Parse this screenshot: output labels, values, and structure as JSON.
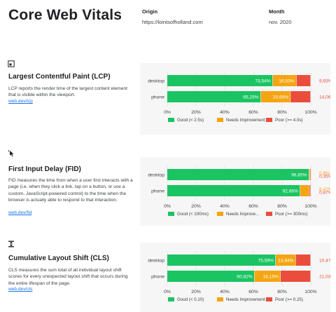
{
  "header": {
    "title": "Core Web Vitals",
    "origin_label": "Origin",
    "origin_value": "https://lointsofholland.com",
    "month_label": "Month",
    "month_value": "nov. 2020"
  },
  "colors": {
    "good": "#1bc462",
    "needs": "#f5a512",
    "poor": "#ea4d3c",
    "card": "#f6f6f6"
  },
  "sections": [
    {
      "icon": "lcp-icon",
      "title": "Largest Contentful Paint (LCP)",
      "description": "LCP reports the render time of the largest content element that is visible within the viewport.",
      "link": "web.dev/lcp"
    },
    {
      "icon": "fid-icon",
      "title": "First Input Delay (FID)",
      "description": "FID measures the time from when a user first interacts with a page (i.e. when they click a link, tap on a button, or use a custom, JavaScript-powered control) to the time when the browser is actually able to respond to that interaction.",
      "link": "web.dev/fid"
    },
    {
      "icon": "cls-icon",
      "title": "Cumulative Layout Shift (CLS)",
      "description": "CLS measures the sum total of all individual layout shift scores for every unexpected layout shift that occurs during the entire lifespan of the page.",
      "link": "web.dev/cls"
    }
  ],
  "chart_data": [
    {
      "type": "bar",
      "stacked": true,
      "orientation": "horizontal",
      "categories": [
        "desktop",
        "phone"
      ],
      "xlim": [
        0,
        100
      ],
      "x_ticks": [
        "0%",
        "20%",
        "40%",
        "60%",
        "80%",
        "100%"
      ],
      "series": [
        {
          "name": "Good (< 2.5s)",
          "values": [
            73.54,
            65.25
          ],
          "labels": [
            "73,54%",
            "65,25%"
          ]
        },
        {
          "name": "Needs Improvement",
          "values": [
            16.53,
            20.69
          ],
          "labels": [
            "16,53%",
            "20,69%"
          ]
        },
        {
          "name": "Poor (>= 4.0s)",
          "values": [
            9.93,
            14.06
          ],
          "labels": [
            "9,93%",
            "14,06%"
          ]
        }
      ],
      "legend_position": "bottom"
    },
    {
      "type": "bar",
      "stacked": true,
      "orientation": "horizontal",
      "categories": [
        "desktop",
        "phone"
      ],
      "xlim": [
        0,
        100
      ],
      "x_ticks": [
        "0%",
        "20%",
        "40%",
        "60%",
        "80%",
        "100%"
      ],
      "series": [
        {
          "name": "Good (< 100ms)",
          "values": [
            98.85,
            92.66
          ],
          "labels": [
            "98,85%",
            "92,66%"
          ]
        },
        {
          "name": "Needs Improve...",
          "values": [
            0.8,
            6.47
          ],
          "labels": [
            "0,8%",
            "6,47%"
          ]
        },
        {
          "name": "Poor (>= 300ms)",
          "values": [
            0.35,
            0.87
          ],
          "labels": [
            "0,35%",
            "0,87%"
          ]
        }
      ],
      "legend_position": "bottom"
    },
    {
      "type": "bar",
      "stacked": true,
      "orientation": "horizontal",
      "categories": [
        "desktop",
        "phone"
      ],
      "xlim": [
        0,
        100
      ],
      "x_ticks": [
        "0%",
        "20%",
        "40%",
        "60%",
        "80%",
        "100%"
      ],
      "series": [
        {
          "name": "Good (< 0.10)",
          "values": [
            75.59,
            60.82
          ],
          "labels": [
            "75,59%",
            "60,82%"
          ]
        },
        {
          "name": "Needs Improvement",
          "values": [
            13.94,
            18.15
          ],
          "labels": [
            "13,94%",
            "18,15%"
          ]
        },
        {
          "name": "Poor (>= 0.25)",
          "values": [
            10.47,
            21.03
          ],
          "labels": [
            "10,47%",
            "21,03%"
          ]
        }
      ],
      "legend_position": "bottom"
    }
  ]
}
